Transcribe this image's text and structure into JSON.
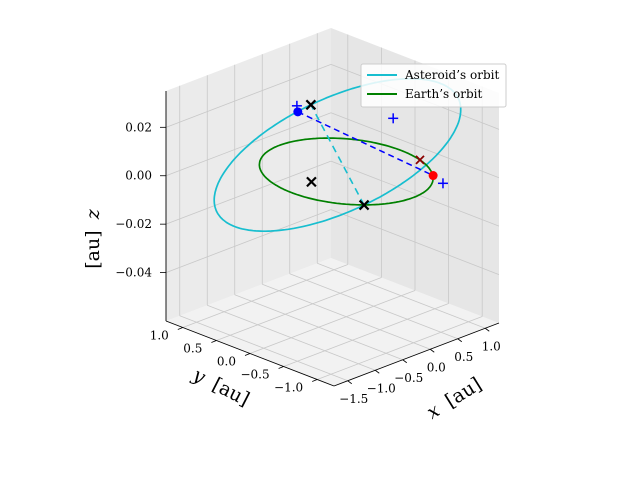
{
  "chart_data": {
    "type": "line",
    "projection": "3d",
    "grid": true,
    "legend": "top-right",
    "xlabel_var": "x",
    "xlabel_unit": "[au]",
    "ylabel_var": "y",
    "ylabel_unit": "[au]",
    "zlabel_var": "z",
    "zlabel_unit": "[au]",
    "xlim": [
      -1.75,
      1.25
    ],
    "ylim": [
      -1.25,
      1.25
    ],
    "zlim": [
      -0.06,
      0.035
    ],
    "xticks": [
      {
        "v": -1.5,
        "label": "−1.5"
      },
      {
        "v": -1.0,
        "label": "−1.0"
      },
      {
        "v": -0.5,
        "label": "−0.5"
      },
      {
        "v": 0.0,
        "label": "0.0"
      },
      {
        "v": 0.5,
        "label": "0.5"
      },
      {
        "v": 1.0,
        "label": "1.0"
      }
    ],
    "yticks": [
      {
        "v": -1.0,
        "label": "−1.0"
      },
      {
        "v": -0.5,
        "label": "−0.5"
      },
      {
        "v": 0.0,
        "label": "0.0"
      },
      {
        "v": 0.5,
        "label": "0.5"
      },
      {
        "v": 1.0,
        "label": "1.0"
      }
    ],
    "zticks": [
      {
        "v": -0.04,
        "label": "−0.04"
      },
      {
        "v": -0.02,
        "label": "−0.02"
      },
      {
        "v": 0.0,
        "label": "0.00"
      },
      {
        "v": 0.02,
        "label": "0.02"
      }
    ],
    "series": [
      {
        "name": "Asteroid’s orbit",
        "color": "#17becf",
        "kind": "ellipse",
        "semi_major": 1.5,
        "eccentricity": 0.33,
        "inclination_deg": 3.0
      },
      {
        "name": "Earth’s orbit",
        "color": "#008000",
        "kind": "circle",
        "radius": 1.0
      }
    ],
    "markers": {
      "asteroid_position": {
        "color": "#0000ff",
        "x": 0.28,
        "y": 0.95,
        "z": 0.012
      },
      "earth_position": {
        "color": "#ff0000",
        "x": 0.7,
        "y": -0.72,
        "z": 0.0
      }
    },
    "colors": {
      "dashed_line_of_nodes": "#17becf",
      "dashed_connector": "#0000ff",
      "cross_marker": "#000000"
    }
  }
}
